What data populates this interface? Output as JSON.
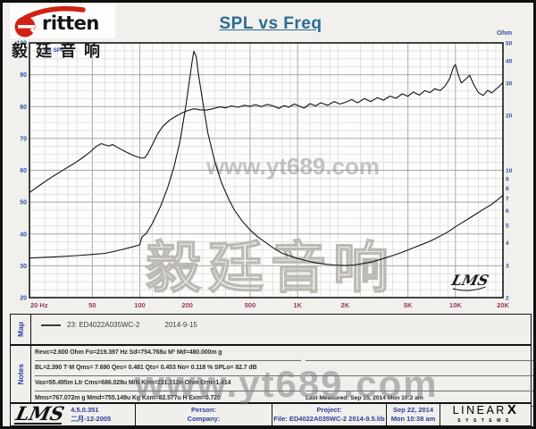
{
  "header": {
    "logo_word": "ritten",
    "logo_cjk": "毅廷音响",
    "title": "SPL vs Freq"
  },
  "chart_data": {
    "type": "line",
    "title": "SPL vs Freq",
    "grid": "on",
    "legend_position": "map-panel-below-chart",
    "x_axis": {
      "label": "Hz",
      "scale": "log",
      "min": 20,
      "max": 20000,
      "tick_values": [
        20,
        50,
        100,
        200,
        500,
        1000,
        2000,
        5000,
        10000,
        20000
      ],
      "tick_labels": [
        "20 Hz",
        "50",
        "100",
        "200",
        "500",
        "1K",
        "2K",
        "5K",
        "10K",
        "20K"
      ]
    },
    "y_left": {
      "label": "dB SPL",
      "scale": "linear",
      "min": 20,
      "max": 100,
      "ticks": [
        100,
        90,
        80,
        70,
        60,
        50,
        40,
        30,
        20
      ],
      "minor_step": 2.5
    },
    "y_right": {
      "label": "Ohm",
      "scale": "log",
      "min": 2,
      "max": 50,
      "ticks": [
        50,
        40,
        30,
        20,
        10,
        9,
        8,
        7,
        6,
        5,
        4,
        3,
        2
      ]
    },
    "series": [
      {
        "name": "SPL  23: ED4022A035WC-2",
        "axis": "left",
        "units": "dB",
        "points": [
          [
            20,
            53
          ],
          [
            24,
            55.8
          ],
          [
            28,
            58
          ],
          [
            33,
            60.2
          ],
          [
            38,
            62
          ],
          [
            43,
            63.8
          ],
          [
            48,
            65.6
          ],
          [
            53,
            67.5
          ],
          [
            57,
            68.4
          ],
          [
            60,
            68
          ],
          [
            64,
            67.6
          ],
          [
            67,
            68.1
          ],
          [
            72,
            67.2
          ],
          [
            80,
            66
          ],
          [
            88,
            65
          ],
          [
            96,
            64.2
          ],
          [
            103,
            63.8
          ],
          [
            108,
            64
          ],
          [
            113,
            65.5
          ],
          [
            120,
            68
          ],
          [
            130,
            71.5
          ],
          [
            140,
            73.8
          ],
          [
            155,
            75.8
          ],
          [
            170,
            77
          ],
          [
            185,
            78
          ],
          [
            200,
            78.7
          ],
          [
            220,
            79.3
          ],
          [
            240,
            79
          ],
          [
            265,
            78.9
          ],
          [
            290,
            79.3
          ],
          [
            320,
            79.9
          ],
          [
            350,
            79.6
          ],
          [
            380,
            80.2
          ],
          [
            420,
            79.8
          ],
          [
            460,
            80.4
          ],
          [
            500,
            80.1
          ],
          [
            540,
            80.6
          ],
          [
            590,
            80
          ],
          [
            640,
            80.7
          ],
          [
            700,
            80.2
          ],
          [
            760,
            79.4
          ],
          [
            820,
            80.3
          ],
          [
            880,
            79.8
          ],
          [
            950,
            80.8
          ],
          [
            1020,
            80.2
          ],
          [
            1100,
            79.5
          ],
          [
            1200,
            80.9
          ],
          [
            1300,
            80.2
          ],
          [
            1400,
            81.2
          ],
          [
            1550,
            80.4
          ],
          [
            1700,
            81.6
          ],
          [
            1850,
            80.8
          ],
          [
            2000,
            81.3
          ],
          [
            2200,
            82.2
          ],
          [
            2400,
            81.2
          ],
          [
            2650,
            82.5
          ],
          [
            2900,
            81.6
          ],
          [
            3200,
            82.8
          ],
          [
            3500,
            82
          ],
          [
            3850,
            83.3
          ],
          [
            4200,
            82.6
          ],
          [
            4600,
            84
          ],
          [
            5000,
            83.2
          ],
          [
            5400,
            84.6
          ],
          [
            5900,
            83.6
          ],
          [
            6400,
            85
          ],
          [
            6900,
            84.4
          ],
          [
            7400,
            85.6
          ],
          [
            8000,
            85
          ],
          [
            8600,
            86.4
          ],
          [
            9200,
            88.8
          ],
          [
            9700,
            92.3
          ],
          [
            10000,
            93.2
          ],
          [
            10400,
            90.2
          ],
          [
            10900,
            87.4
          ],
          [
            11600,
            88.6
          ],
          [
            12300,
            89.8
          ],
          [
            13100,
            86.8
          ],
          [
            14000,
            84.4
          ],
          [
            15000,
            83.5
          ],
          [
            16000,
            85.1
          ],
          [
            17000,
            84.3
          ],
          [
            18000,
            85.4
          ],
          [
            19000,
            86.4
          ],
          [
            20000,
            87.6
          ]
        ]
      },
      {
        "name": "Impedance  23: ED4022A035WC-2",
        "axis": "right",
        "units": "Ohm",
        "points": [
          [
            20,
            3.3
          ],
          [
            30,
            3.35
          ],
          [
            40,
            3.4
          ],
          [
            50,
            3.45
          ],
          [
            60,
            3.5
          ],
          [
            70,
            3.6
          ],
          [
            80,
            3.7
          ],
          [
            90,
            3.8
          ],
          [
            100,
            3.9
          ],
          [
            103,
            4.3
          ],
          [
            110,
            4.5
          ],
          [
            120,
            5.1
          ],
          [
            135,
            6.3
          ],
          [
            150,
            8
          ],
          [
            165,
            10.5
          ],
          [
            180,
            14.5
          ],
          [
            195,
            22
          ],
          [
            205,
            30
          ],
          [
            215,
            40
          ],
          [
            220,
            45
          ],
          [
            228,
            42
          ],
          [
            235,
            34
          ],
          [
            250,
            24
          ],
          [
            270,
            16
          ],
          [
            300,
            11
          ],
          [
            330,
            8.5
          ],
          [
            370,
            6.8
          ],
          [
            400,
            6
          ],
          [
            450,
            5.2
          ],
          [
            500,
            4.7
          ],
          [
            560,
            4.3
          ],
          [
            630,
            4
          ],
          [
            700,
            3.75
          ],
          [
            800,
            3.5
          ],
          [
            900,
            3.38
          ],
          [
            1000,
            3.28
          ],
          [
            1150,
            3.18
          ],
          [
            1300,
            3.1
          ],
          [
            1500,
            3.05
          ],
          [
            1700,
            3.02
          ],
          [
            2000,
            3
          ],
          [
            2300,
            3.02
          ],
          [
            2600,
            3.08
          ],
          [
            3000,
            3.15
          ],
          [
            3500,
            3.28
          ],
          [
            4000,
            3.4
          ],
          [
            4500,
            3.52
          ],
          [
            5000,
            3.65
          ],
          [
            5600,
            3.8
          ],
          [
            6300,
            3.95
          ],
          [
            7000,
            4.1
          ],
          [
            8000,
            4.35
          ],
          [
            9000,
            4.6
          ],
          [
            10000,
            4.9
          ],
          [
            11000,
            5.15
          ],
          [
            12000,
            5.4
          ],
          [
            13500,
            5.75
          ],
          [
            15000,
            6.1
          ],
          [
            17000,
            6.5
          ],
          [
            18500,
            6.9
          ],
          [
            20000,
            7.3
          ]
        ]
      }
    ]
  },
  "map_panel": {
    "label": "Map",
    "curve_id": "23: ED4022A035WC-2",
    "date": "2014-9-15"
  },
  "notes_panel": {
    "label": "Notes",
    "lines": [
      "Revc=2.600 Ohm  Fo=219.397 Hz  Sd=754.768u M²  Md=480.000m g",
      "BL=2.390 T·M  Qms= 7.690  Qes= 0.481  Qts= 0.453  No= 0.118 %  SPLo= 82.7 dB",
      "Vas=55.495m Ltr  Cms=686.028u M/N  Krm=231.312n Ohm  Erm=1.414",
      "Mms=767.072m g  Mmd=755.149u Kg  Kxm=82.577u H  Exm=0.720"
    ],
    "last_measured": "Last Measured: Sep 15, 2014  Mon 10:2  am"
  },
  "footer": {
    "lms_text": "LMS",
    "version": "4.5.0.351",
    "version_date": "二月-12-2005",
    "person_label": "Person:",
    "company_label": "Company:",
    "project_label": "Project:",
    "file_line": "File: ED4022A035WC-2    2014-9.5.lib",
    "date_line1": "Sep 22, 2014",
    "date_line2": "Mon 10:38 am",
    "brand_linear": "LINEAR",
    "brand_x": "X",
    "brand_systems": "SYSTEMS"
  },
  "watermarks": {
    "site": "www.yt689.com",
    "cjk": "毅廷音响",
    "lms_mark": "LMS"
  },
  "colors": {
    "title": "#2c6b93",
    "axis_blue": "#3151a6",
    "axis_maroon": "#943a5e",
    "logo_red": "#d22015",
    "curve": "#141414",
    "grid_minor": "#d8d7d4",
    "grid_major": "#a8a7a4"
  }
}
